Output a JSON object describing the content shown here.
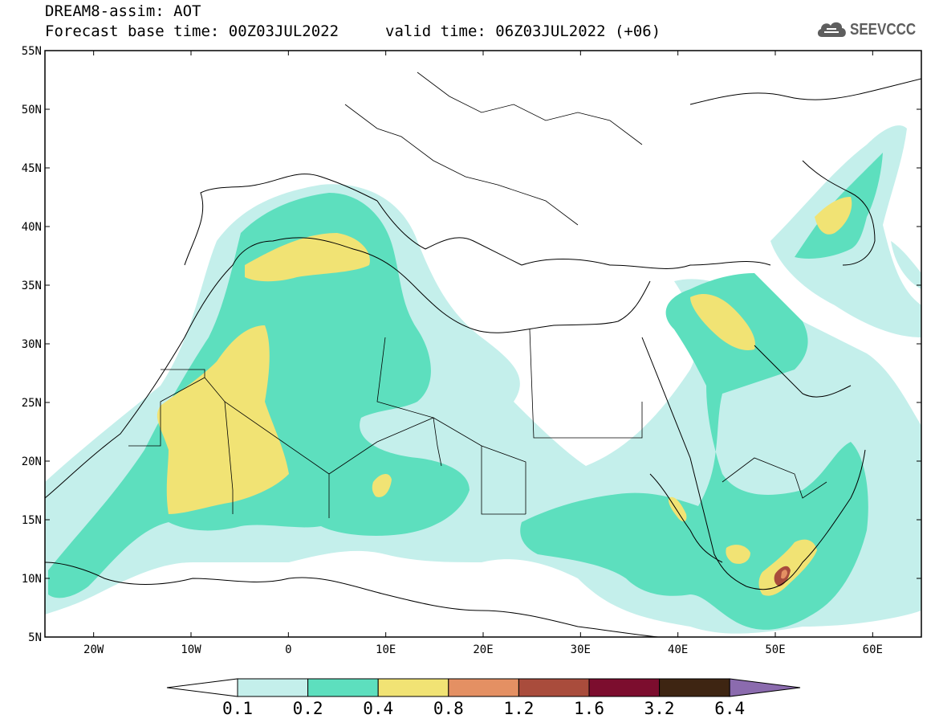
{
  "header": {
    "title_line_1": "DREAM8-assim: AOT",
    "base_time": "Forecast base time: 00Z03JUL2022",
    "valid_time": "valid time: 06Z03JUL2022 (+06)"
  },
  "logo": {
    "text": "SEEVCCC",
    "icon": "cloud-icon",
    "color": "#5e5e5e"
  },
  "map": {
    "lat_labels": [
      "55N",
      "50N",
      "45N",
      "40N",
      "35N",
      "30N",
      "25N",
      "20N",
      "15N",
      "10N",
      "5N"
    ],
    "lon_labels": [
      "20W",
      "10W",
      "0",
      "10E",
      "20E",
      "30E",
      "40E",
      "50E",
      "60E"
    ],
    "extent": {
      "lon": [
        -25,
        65
      ],
      "lat": [
        5,
        55
      ]
    }
  },
  "colorbar": {
    "levels": [
      "0.1",
      "0.2",
      "0.4",
      "0.8",
      "1.2",
      "1.6",
      "3.2",
      "6.4"
    ],
    "colors": [
      "#ffffff",
      "#c4efeb",
      "#5ddfbe",
      "#f1e374",
      "#e49063",
      "#a94c3c",
      "#7c0d2e",
      "#3e2512",
      "#8b6bae"
    ]
  }
}
